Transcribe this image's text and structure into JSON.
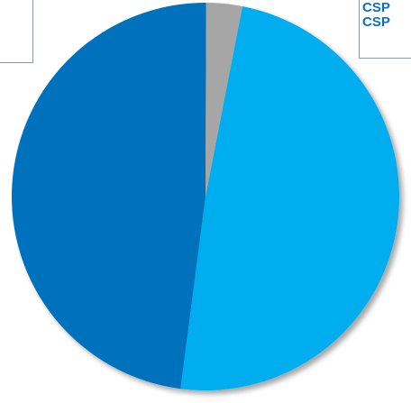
{
  "chart_data": {
    "type": "pie",
    "slices": [
      {
        "value": 49.0,
        "color": "#00aeef"
      },
      {
        "value": 48.0,
        "color": "#0071bc"
      },
      {
        "value": 3.0,
        "color": "#a6a6a6"
      }
    ],
    "start_angle_deg": 11
  },
  "legend": {
    "items": [
      "CSP",
      "CSP"
    ]
  }
}
